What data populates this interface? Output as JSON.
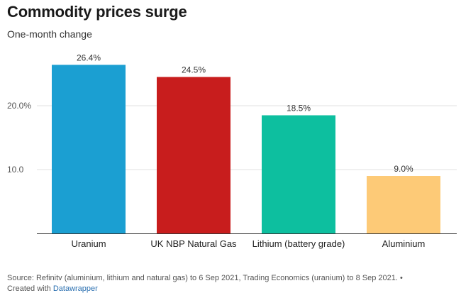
{
  "header": {
    "title": "Commodity prices surge",
    "subtitle": "One-month change"
  },
  "chart_data": {
    "type": "bar",
    "title": "Commodity prices surge",
    "subtitle": "One-month change",
    "xlabel": "",
    "ylabel": "",
    "categories": [
      "Uranium",
      "UK NBP Natural Gas",
      "Lithium (battery grade)",
      "Aluminium"
    ],
    "values": [
      26.4,
      24.5,
      18.5,
      9.0
    ],
    "value_labels": [
      "26.4%",
      "24.5%",
      "18.5%",
      "9.0%"
    ],
    "colors": [
      "#1b9fd2",
      "#c81d1d",
      "#0dbf9f",
      "#fdca77"
    ],
    "ylim": [
      0,
      28.5
    ],
    "yticks": [
      10,
      20
    ],
    "ytick_labels": [
      "10.0",
      "20.0%"
    ],
    "grid": true,
    "legend": "none"
  },
  "footer": {
    "source": "Source: Refinitv (aluminium, lithium and natural gas) to 6 Sep 2021, Trading Economics (uranium) to 8 Sep 2021. •",
    "created_with": "Created with",
    "tool": "Datawrapper"
  }
}
